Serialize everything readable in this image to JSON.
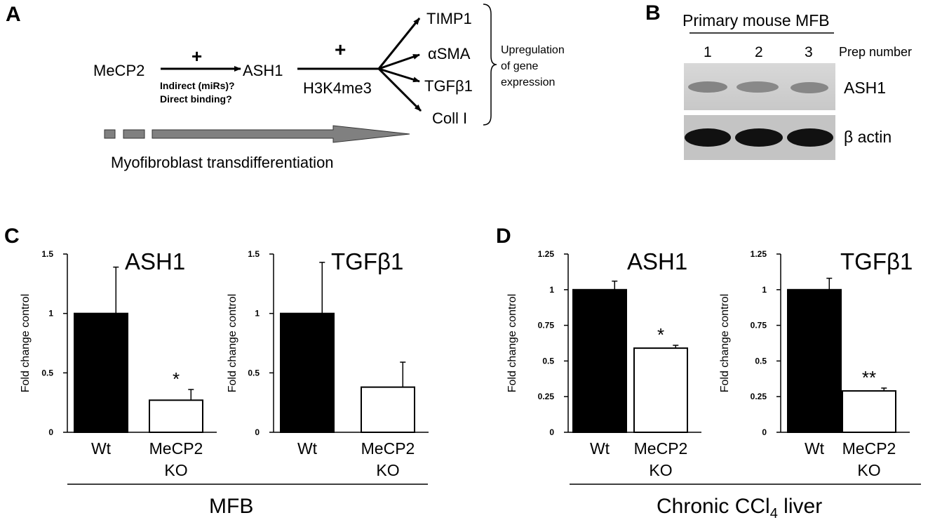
{
  "panels": {
    "a": {
      "letter": "A",
      "mecp2": "MeCP2",
      "plus1": "+",
      "ash1": "ASH1",
      "plus2": "+",
      "note1": "Indirect (miRs)?",
      "note2": "Direct binding?",
      "h3k4": "H3K4me3",
      "genes": [
        "TIMP1",
        "αSMA",
        "TGFβ1",
        "Coll I"
      ],
      "upreg": [
        "Upregulation",
        "of gene",
        "expression"
      ],
      "arrow_caption": "Myofibroblast transdifferentiation"
    },
    "b": {
      "letter": "B",
      "title": "Primary mouse MFB",
      "lanes": [
        "1",
        "2",
        "3"
      ],
      "prep_label": "Prep number",
      "band1": "ASH1",
      "band2": "β actin"
    },
    "c": {
      "letter": "C",
      "group_label": "MFB"
    },
    "d": {
      "letter": "D",
      "group_label_main": "Chronic CCl",
      "group_label_sub": "4",
      "group_label_end": " liver"
    }
  },
  "chart_data": [
    {
      "type": "bar",
      "panel": "C",
      "title": "ASH1",
      "ylabel": "Fold change control",
      "categories": [
        "Wt",
        "MeCP2 KO"
      ],
      "values": [
        1.0,
        0.27
      ],
      "errors": [
        0.39,
        0.09
      ],
      "significance": [
        "",
        "*"
      ],
      "colors": [
        "#000000",
        "#ffffff"
      ],
      "ylim": [
        0,
        1.5
      ],
      "yticks": [
        0,
        0.5,
        1,
        1.5
      ],
      "ytick_labels": [
        "0",
        "0.5",
        "1",
        "1.5"
      ]
    },
    {
      "type": "bar",
      "panel": "C",
      "title": "TGFβ1",
      "ylabel": "Fold change control",
      "categories": [
        "Wt",
        "MeCP2 KO"
      ],
      "values": [
        1.0,
        0.38
      ],
      "errors": [
        0.43,
        0.21
      ],
      "significance": [
        "",
        ""
      ],
      "colors": [
        "#000000",
        "#ffffff"
      ],
      "ylim": [
        0,
        1.5
      ],
      "yticks": [
        0,
        0.5,
        1,
        1.5
      ],
      "ytick_labels": [
        "0",
        "0.5",
        "1",
        "1.5"
      ]
    },
    {
      "type": "bar",
      "panel": "D",
      "title": "ASH1",
      "ylabel": "Fold change control",
      "categories": [
        "Wt",
        "MeCP2 KO"
      ],
      "values": [
        1.0,
        0.59
      ],
      "errors": [
        0.06,
        0.02
      ],
      "significance": [
        "",
        "*"
      ],
      "colors": [
        "#000000",
        "#ffffff"
      ],
      "ylim": [
        0,
        1.25
      ],
      "yticks": [
        0,
        0.25,
        0.5,
        0.75,
        1,
        1.25
      ],
      "ytick_labels": [
        "0",
        "0.25",
        "0.5",
        "0.75",
        "1",
        "1.25"
      ]
    },
    {
      "type": "bar",
      "panel": "D",
      "title": "TGFβ1",
      "ylabel": "Fold change control",
      "categories": [
        "Wt",
        "MeCP2 KO"
      ],
      "values": [
        1.0,
        0.29
      ],
      "errors": [
        0.08,
        0.02
      ],
      "significance": [
        "",
        "**"
      ],
      "colors": [
        "#000000",
        "#ffffff"
      ],
      "ylim": [
        0,
        1.25
      ],
      "yticks": [
        0,
        0.25,
        0.5,
        0.75,
        1,
        1.25
      ],
      "ytick_labels": [
        "0",
        "0.25",
        "0.5",
        "0.75",
        "1",
        "1.25"
      ]
    }
  ]
}
